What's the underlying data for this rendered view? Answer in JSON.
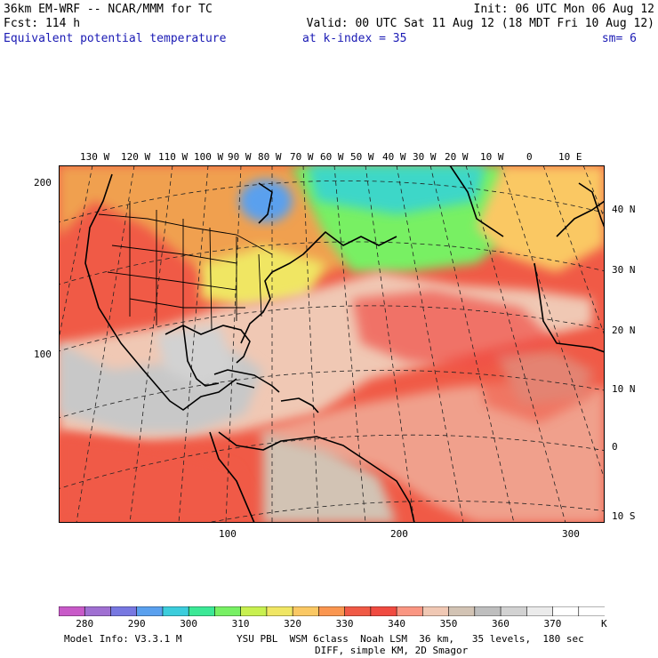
{
  "header": {
    "model": "36km EM-WRF -- NCAR/MMM for TC",
    "init": "Init: 06 UTC Mon 06 Aug 12",
    "fcst": "Fcst: 114 h",
    "valid": "Valid: 00 UTC Sat 11 Aug 12 (18 MDT Fri 10 Aug 12)",
    "field": "Equivalent potential temperature",
    "level": "at k-index = 35",
    "smooth": "sm= 6"
  },
  "map": {
    "lon_labels": [
      "130 W",
      "120 W",
      "110 W",
      "100 W",
      "90 W",
      "80 W",
      "70 W",
      "60 W",
      "50 W",
      "40 W",
      "30 W",
      "20 W",
      "10 W",
      "0",
      "10 E"
    ],
    "lat_labels": [
      "40 N",
      "30 N",
      "20 N",
      "10 N",
      "0",
      "10 S"
    ],
    "grid_x_labels": [
      "100",
      "200",
      "300"
    ],
    "grid_y_labels": [
      "200",
      "100"
    ]
  },
  "colorbar": {
    "colors": [
      "#c85ac8",
      "#a070d2",
      "#7878e1",
      "#5aa0ee",
      "#3ccddc",
      "#3ce896",
      "#78f064",
      "#c8f050",
      "#f0e664",
      "#fac864",
      "#fa9650",
      "#f05a46",
      "#f04b41",
      "#fa9682",
      "#f0c8b4",
      "#d2c3b4",
      "#bebebe",
      "#d2d2d2",
      "#ebebeb",
      "#ffffff",
      "#ffffff"
    ],
    "labels": [
      "280",
      "290",
      "300",
      "310",
      "320",
      "330",
      "340",
      "350",
      "360",
      "370"
    ],
    "unit": "K"
  },
  "footer": {
    "model_info": "Model Info: V3.3.1 M",
    "physics": "YSU PBL  WSM 6class  Noah LSM  36 km,   35 levels,  180 sec",
    "diff": "DIFF, simple KM, 2D Smagor"
  }
}
